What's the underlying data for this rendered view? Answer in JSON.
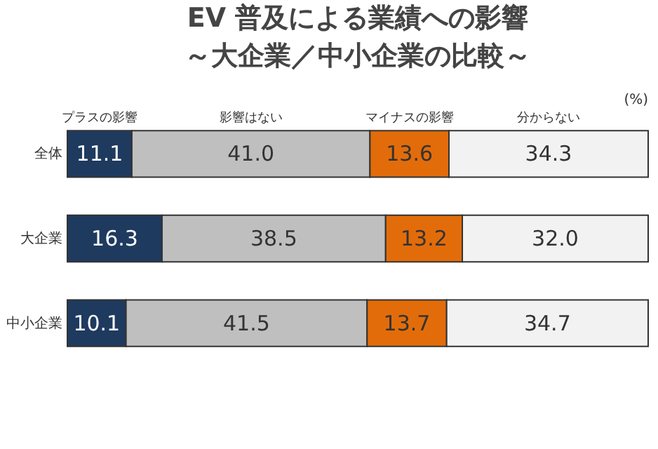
{
  "chart_data": {
    "type": "bar",
    "orientation": "horizontal",
    "stacked": true,
    "title": "EV 普及による業績への影響",
    "subtitle": "～大企業／中小企業の比較～",
    "categories": [
      "全体",
      "大企業",
      "中小企業"
    ],
    "series": [
      {
        "name": "プラスの影響",
        "color": "#1f3a5f",
        "values": [
          11.1,
          16.3,
          10.1
        ],
        "value_labels": [
          "11.1",
          "16.3",
          "10.1"
        ]
      },
      {
        "name": "影響はない",
        "color": "#bfbfbf",
        "values": [
          41.0,
          38.5,
          41.5
        ],
        "value_labels": [
          "41.0",
          "38.5",
          "41.5"
        ]
      },
      {
        "name": "マイナスの影響",
        "color": "#e36c0a",
        "values": [
          13.6,
          13.2,
          13.7
        ],
        "value_labels": [
          "13.6",
          "13.2",
          "13.7"
        ]
      },
      {
        "name": "分からない",
        "color": "#f2f2f2",
        "values": [
          34.3,
          32.0,
          34.7
        ],
        "value_labels": [
          "34.3",
          "32.0",
          "34.7"
        ]
      }
    ],
    "legend": "top",
    "annotations": [
      "(%)"
    ]
  }
}
